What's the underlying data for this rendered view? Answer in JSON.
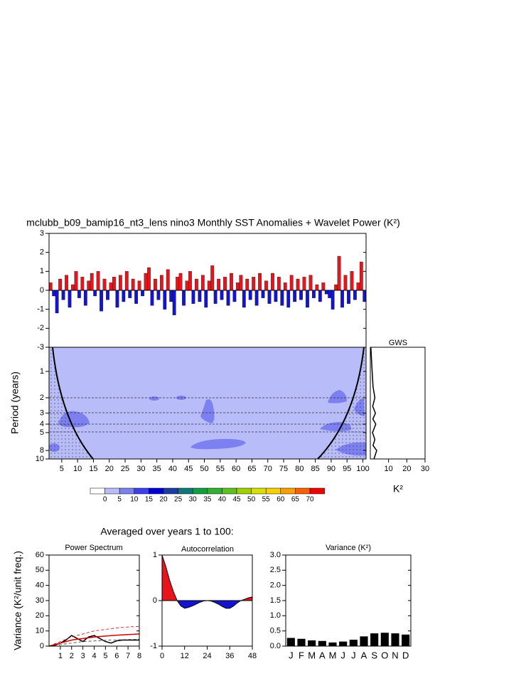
{
  "title": "mclubb_b09_bamip16_nt3_lens nino3 Monthly SST Anomalies + Wavelet Power (K²)",
  "section_title": "Averaged over years 1 to 100:",
  "chart_data": [
    {
      "type": "bar",
      "positive_color": "#e8141c",
      "negative_color": "#1414d0",
      "xlim": [
        1,
        101
      ],
      "ylim": [
        -3,
        3
      ],
      "yticks": [
        -3,
        -2,
        -1,
        0,
        1,
        2,
        3
      ],
      "x": [
        1.5,
        2.5,
        3.5,
        4.5,
        5.5,
        6.5,
        7.5,
        8.5,
        9.5,
        10.5,
        11.5,
        12.5,
        13.5,
        14.5,
        15.5,
        16.5,
        17.5,
        18.5,
        19.5,
        20.5,
        21.5,
        22.5,
        23.5,
        24.5,
        25.5,
        26.5,
        27.5,
        28.5,
        29.5,
        30.5,
        31.5,
        32.5,
        33.5,
        34.5,
        35.5,
        36.5,
        37.5,
        38.5,
        39.5,
        40.5,
        41.5,
        42.5,
        43.5,
        44.5,
        45.5,
        46.5,
        47.5,
        48.5,
        49.5,
        50.5,
        51.5,
        52.5,
        53.5,
        54.5,
        55.5,
        56.5,
        57.5,
        58.5,
        59.5,
        60.5,
        61.5,
        62.5,
        63.5,
        64.5,
        65.5,
        66.5,
        67.5,
        68.5,
        69.5,
        70.5,
        71.5,
        72.5,
        73.5,
        74.5,
        75.5,
        76.5,
        77.5,
        78.5,
        79.5,
        80.5,
        81.5,
        82.5,
        83.5,
        84.5,
        85.5,
        86.5,
        87.5,
        88.5,
        89.5,
        90.5,
        91.5,
        92.5,
        93.5,
        94.5,
        95.5,
        96.5,
        97.5,
        98.5,
        99.5,
        100.5
      ],
      "values": [
        0.4,
        -0.3,
        -1.2,
        0.6,
        -0.5,
        0.8,
        -0.9,
        0.3,
        1.0,
        -0.4,
        0.7,
        -0.8,
        0.5,
        0.9,
        -0.3,
        1.0,
        -1.1,
        0.6,
        -0.5,
        0.4,
        0.7,
        -0.9,
        0.8,
        -0.6,
        1.0,
        -0.4,
        0.6,
        -0.7,
        0.5,
        -0.3,
        0.9,
        1.2,
        -0.8,
        0.6,
        -0.5,
        0.8,
        -1.0,
        1.1,
        -0.6,
        -1.3,
        0.7,
        0.9,
        -0.8,
        0.5,
        1.0,
        -0.7,
        0.6,
        -0.6,
        0.8,
        -0.9,
        0.5,
        1.3,
        -0.7,
        0.6,
        -0.5,
        0.7,
        -0.8,
        0.9,
        -0.6,
        0.4,
        0.8,
        -0.9,
        0.6,
        -0.5,
        0.7,
        -0.8,
        0.9,
        -0.4,
        0.5,
        -0.7,
        0.9,
        -0.6,
        0.7,
        -0.8,
        0.4,
        -0.9,
        0.8,
        -0.6,
        0.6,
        -0.5,
        0.7,
        -0.9,
        0.8,
        -0.4,
        0.3,
        -0.6,
        0.4,
        -0.2,
        -0.4,
        -1.0,
        0.3,
        1.8,
        -0.9,
        0.8,
        -0.7,
        1.0,
        -0.5,
        0.4,
        1.5,
        -0.6
      ]
    },
    {
      "type": "contour",
      "y_label": "Period (years)",
      "log_y": true,
      "xlim": [
        1,
        101
      ],
      "xticks": [
        5,
        10,
        15,
        20,
        25,
        30,
        35,
        40,
        45,
        50,
        55,
        60,
        65,
        70,
        75,
        80,
        85,
        90,
        95,
        100
      ],
      "ylim": [
        0.53,
        10
      ],
      "yticks": [
        1,
        2,
        3,
        4,
        5,
        8,
        10
      ],
      "levels": [
        0,
        5,
        10,
        15,
        20,
        25,
        30,
        35,
        40,
        45,
        50,
        55,
        60,
        65,
        70
      ],
      "colors": [
        "#ffffff",
        "#b8bcf8",
        "#7c80f0",
        "#3c40f0",
        "#0000d0",
        "#1c3ca0",
        "#107878",
        "#10a040",
        "#30b030",
        "#60c020",
        "#a0d000",
        "#d8e000",
        "#f8d000",
        "#f8a000",
        "#f86000",
        "#f00000"
      ]
    },
    {
      "type": "line",
      "title": "GWS",
      "x_label": "K²",
      "log_y": true,
      "color": "#000000",
      "xlim": [
        0,
        30
      ],
      "xticks": [
        10,
        20,
        30
      ],
      "ylim": [
        0.53,
        10
      ],
      "periods": [
        0.53,
        0.7,
        1,
        1.5,
        2,
        2.5,
        3,
        3.5,
        4,
        5,
        6,
        7,
        8,
        10
      ],
      "values": [
        0.3,
        0.6,
        1.0,
        1.5,
        2.5,
        1.3,
        2.8,
        1.4,
        3.0,
        1.2,
        2.5,
        1.5,
        3.5,
        2.0
      ]
    },
    {
      "type": "line",
      "title": "Power Spectrum",
      "y_label": "Variance (K²/unit freq.)",
      "xlim": [
        0,
        8
      ],
      "xticks": [
        1,
        2,
        3,
        4,
        5,
        6,
        7,
        8
      ],
      "ylim": [
        0,
        60
      ],
      "yticks": [
        0,
        10,
        20,
        30,
        40,
        50,
        60
      ],
      "x": [
        0,
        0.5,
        1,
        1.5,
        2,
        2.5,
        3,
        3.5,
        4,
        4.5,
        5,
        5.5,
        6,
        6.5,
        7,
        7.5,
        8
      ],
      "series": [
        {
          "color": "#000000",
          "style": "solid",
          "values": [
            0,
            0.5,
            2,
            4,
            7,
            5,
            3,
            6,
            7,
            5,
            3,
            2,
            3.5,
            4,
            4,
            4,
            4
          ]
        },
        {
          "color": "#cc0000",
          "style": "solid",
          "values": [
            0,
            1,
            2,
            3,
            4,
            4.5,
            5,
            5.5,
            6,
            6.3,
            6.6,
            6.9,
            7.2,
            7.4,
            7.6,
            7.8,
            8
          ]
        },
        {
          "color": "#cc0000",
          "style": "dashed",
          "values": [
            0,
            1.5,
            3,
            4.5,
            6,
            7,
            8,
            9,
            10,
            10.5,
            11,
            11.5,
            12,
            12.3,
            12.6,
            12.8,
            13
          ]
        },
        {
          "color": "#333333",
          "style": "dashed",
          "values": [
            0,
            0.5,
            1,
            1.5,
            2,
            2.5,
            3,
            3.2,
            3.4,
            3.6,
            3.8,
            4,
            4.1,
            4.2,
            4.3,
            4.4,
            4.5
          ]
        }
      ]
    },
    {
      "type": "area",
      "title": "Autocorrelation",
      "positive_color": "#e8141c",
      "negative_color": "#1414d0",
      "xlim": [
        0,
        48
      ],
      "xticks": [
        0,
        12,
        24,
        36,
        48
      ],
      "ylim": [
        -1,
        1
      ],
      "yticks": [
        -1,
        0,
        1
      ],
      "x": [
        0,
        2,
        4,
        6,
        8,
        10,
        12,
        14,
        16,
        18,
        20,
        22,
        24,
        26,
        28,
        30,
        32,
        34,
        36,
        38,
        40,
        42,
        44,
        46,
        48
      ],
      "values": [
        1,
        0.75,
        0.45,
        0.2,
        0.0,
        -0.12,
        -0.17,
        -0.15,
        -0.12,
        -0.08,
        -0.04,
        -0.01,
        0.0,
        -0.01,
        -0.04,
        -0.08,
        -0.13,
        -0.17,
        -0.17,
        -0.12,
        -0.05,
        0.0,
        0.03,
        0.06,
        0.08
      ]
    },
    {
      "type": "bar",
      "title": "Variance (K²)",
      "color": "#000000",
      "categories": [
        "J",
        "F",
        "M",
        "A",
        "M",
        "J",
        "J",
        "A",
        "S",
        "O",
        "N",
        "D"
      ],
      "values": [
        0.27,
        0.24,
        0.19,
        0.17,
        0.12,
        0.15,
        0.21,
        0.32,
        0.42,
        0.44,
        0.42,
        0.38
      ],
      "ylim": [
        0,
        3
      ],
      "yticks": [
        {
          "value": 0,
          "label": "0.0"
        },
        {
          "value": 0.5,
          "label": "0.5"
        },
        {
          "value": 1,
          "label": "1.0"
        },
        {
          "value": 1.5,
          "label": "1.5"
        },
        {
          "value": 2,
          "label": "2.0"
        },
        {
          "value": 2.5,
          "label": "2.5"
        },
        {
          "value": 3,
          "label": "3.0"
        }
      ]
    }
  ]
}
